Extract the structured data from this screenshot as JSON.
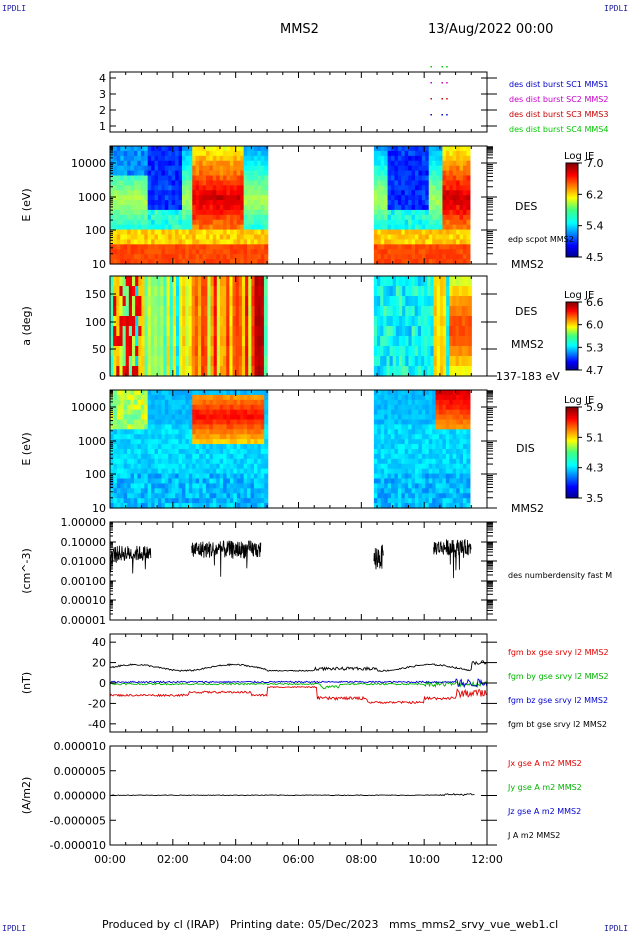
{
  "header": {
    "corner_tl": "IPDLI",
    "corner_tr": "IPDLI",
    "corner_bl": "IPDLI",
    "corner_br": "IPDLI",
    "title": "MMS2",
    "date": "13/Aug/2022 00:00"
  },
  "footer": {
    "text": "Produced by cl (IRAP)   Printing date: 05/Dec/2023   mms_mms2_srvy_vue_web1.cl"
  },
  "chart_data": [
    {
      "type": "scatter",
      "panel": "burst",
      "yticks": [
        "4",
        "3",
        "2",
        "1"
      ],
      "ylim": [
        0.5,
        4.5
      ],
      "legend": [
        {
          "label": "des dist burst SC1 MMS1",
          "color": "#0000c8"
        },
        {
          "label": "des dist burst SC2 MMS2",
          "color": "#c800c8"
        },
        {
          "label": "des dist burst SC3 MMS3",
          "color": "#c80000"
        },
        {
          "label": "des dist burst SC4 MMS4",
          "color": "#00c800"
        }
      ]
    },
    {
      "type": "heatmap",
      "panel": "des_energy",
      "ylabel": "E (eV)",
      "yticks": [
        "10000",
        "1000",
        "100",
        "10"
      ],
      "right_label": "DES",
      "right_sub": "edp scpot MMS2",
      "right_bottom": "MMS2",
      "colorbar": {
        "title": "Log JE",
        "ticks": [
          "7.0",
          "6.2",
          "5.4",
          "4.5"
        ],
        "range": [
          4.5,
          7.0
        ]
      }
    },
    {
      "type": "heatmap",
      "panel": "des_pitch",
      "ylabel": "a (deg)",
      "yticks": [
        "150",
        "100",
        "50",
        "0"
      ],
      "right_label": "DES",
      "right_sub": "MMS2",
      "right_bottom": "137-183 eV",
      "colorbar": {
        "title": "Log JE",
        "ticks": [
          "6.6",
          "6.0",
          "5.3",
          "4.7"
        ],
        "range": [
          4.7,
          6.6
        ]
      }
    },
    {
      "type": "heatmap",
      "panel": "dis_energy",
      "ylabel": "E (eV)",
      "yticks": [
        "10000",
        "1000",
        "100",
        "10"
      ],
      "right_label": "DIS",
      "right_bottom": "MMS2",
      "colorbar": {
        "title": "Log JE",
        "ticks": [
          "5.9",
          "5.1",
          "4.3",
          "3.5"
        ],
        "range": [
          3.5,
          5.9
        ]
      }
    },
    {
      "type": "line",
      "panel": "density",
      "ylabel": "(cm^-3)",
      "yticks": [
        "1.00000",
        "0.10000",
        "0.01000",
        "0.00100",
        "0.00010",
        "0.00001"
      ],
      "legend": [
        {
          "label": "des numberdensity fast M",
          "color": "#000000"
        }
      ]
    },
    {
      "type": "line",
      "panel": "fgm",
      "ylabel": "(nT)",
      "yticks": [
        "40",
        "20",
        "0",
        "-20",
        "-40"
      ],
      "ylim": [
        -48,
        48
      ],
      "legend": [
        {
          "label": "fgm bx gse srvy l2 MMS2",
          "color": "#e00000"
        },
        {
          "label": "fgm by gse srvy l2 MMS2",
          "color": "#00b400"
        },
        {
          "label": "fgm bz gse srvy l2 MMS2",
          "color": "#0000d0"
        },
        {
          "label": "fgm bt gse srvy l2 MMS2",
          "color": "#000000"
        }
      ]
    },
    {
      "type": "line",
      "panel": "current",
      "ylabel": "(A/m2)",
      "yticks": [
        "0.000010",
        "0.000005",
        "0.000000",
        "-0.000005",
        "-0.000010"
      ],
      "ylim": [
        -1e-05,
        1e-05
      ],
      "legend": [
        {
          "label": "Jx gse A m2 MMS2",
          "color": "#e00000"
        },
        {
          "label": "Jy gse A m2 MMS2",
          "color": "#00b400"
        },
        {
          "label": "Jz gse A m2 MMS2",
          "color": "#0000d0"
        },
        {
          "label": "J A m2 MMS2",
          "color": "#000000"
        }
      ]
    }
  ],
  "xaxis": {
    "ticks": [
      "00:00",
      "02:00",
      "04:00",
      "06:00",
      "08:00",
      "10:00",
      "12:00"
    ],
    "range_hours": [
      0,
      12
    ],
    "data_gap_hours": [
      5.0,
      8.4
    ]
  }
}
